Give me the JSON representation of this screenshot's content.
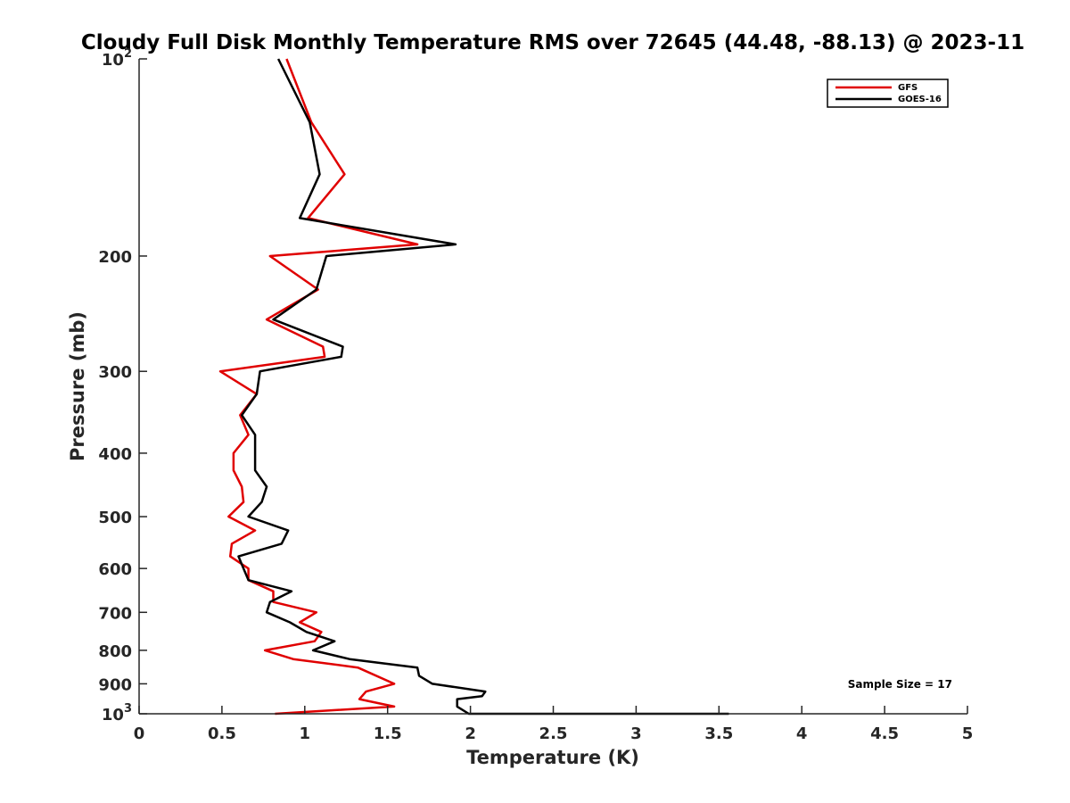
{
  "chart_data": {
    "type": "line",
    "title": "Cloudy Full Disk Monthly Temperature RMS over 72645 (44.48, -88.13) @ 2023-11",
    "xlabel": "Temperature (K)",
    "ylabel": "Pressure (mb)",
    "xlim": [
      0,
      5
    ],
    "ylim": [
      100,
      1000
    ],
    "y_scale": "log",
    "y_reversed": true,
    "grid": false,
    "legend_position": "top-right",
    "x_ticks": [
      "0",
      "0.5",
      "1",
      "1.5",
      "2",
      "2.5",
      "3",
      "3.5",
      "4",
      "4.5",
      "5"
    ],
    "y_ticks": [
      {
        "value": 100,
        "base": "10",
        "exp": "2"
      },
      {
        "value": 200,
        "label": "200"
      },
      {
        "value": 300,
        "label": "300"
      },
      {
        "value": 400,
        "label": "400"
      },
      {
        "value": 500,
        "label": "500"
      },
      {
        "value": 600,
        "label": "600"
      },
      {
        "value": 700,
        "label": "700"
      },
      {
        "value": 800,
        "label": "800"
      },
      {
        "value": 900,
        "label": "900"
      },
      {
        "value": 1000,
        "base": "10",
        "exp": "3"
      }
    ],
    "annotation": "Sample Size = 17",
    "series": [
      {
        "name": "GFS",
        "color": "#e00000",
        "points": [
          [
            0.89,
            100
          ],
          [
            1.04,
            125
          ],
          [
            1.24,
            150
          ],
          [
            1.02,
            175
          ],
          [
            1.68,
            192
          ],
          [
            0.79,
            200
          ],
          [
            1.08,
            225
          ],
          [
            0.77,
            250
          ],
          [
            1.11,
            275
          ],
          [
            1.12,
            285
          ],
          [
            0.49,
            300
          ],
          [
            0.71,
            325
          ],
          [
            0.61,
            350
          ],
          [
            0.66,
            375
          ],
          [
            0.57,
            400
          ],
          [
            0.57,
            425
          ],
          [
            0.62,
            450
          ],
          [
            0.63,
            475
          ],
          [
            0.54,
            500
          ],
          [
            0.7,
            525
          ],
          [
            0.56,
            550
          ],
          [
            0.55,
            575
          ],
          [
            0.66,
            600
          ],
          [
            0.66,
            625
          ],
          [
            0.81,
            650
          ],
          [
            0.81,
            675
          ],
          [
            1.07,
            700
          ],
          [
            0.97,
            725
          ],
          [
            1.1,
            750
          ],
          [
            1.06,
            775
          ],
          [
            0.76,
            800
          ],
          [
            0.93,
            825
          ],
          [
            1.32,
            850
          ],
          [
            1.54,
            900
          ],
          [
            1.37,
            925
          ],
          [
            1.33,
            950
          ],
          [
            1.54,
            975
          ],
          [
            0.82,
            1000
          ]
        ]
      },
      {
        "name": "GOES-16",
        "color": "#000000",
        "points": [
          [
            0.84,
            100
          ],
          [
            1.03,
            125
          ],
          [
            1.09,
            150
          ],
          [
            0.97,
            175
          ],
          [
            1.91,
            192
          ],
          [
            1.13,
            200
          ],
          [
            1.07,
            225
          ],
          [
            0.81,
            250
          ],
          [
            1.23,
            275
          ],
          [
            1.22,
            285
          ],
          [
            0.73,
            300
          ],
          [
            0.71,
            325
          ],
          [
            0.62,
            350
          ],
          [
            0.7,
            375
          ],
          [
            0.7,
            400
          ],
          [
            0.7,
            425
          ],
          [
            0.77,
            450
          ],
          [
            0.74,
            475
          ],
          [
            0.66,
            500
          ],
          [
            0.9,
            525
          ],
          [
            0.86,
            550
          ],
          [
            0.6,
            575
          ],
          [
            0.63,
            600
          ],
          [
            0.66,
            625
          ],
          [
            0.92,
            650
          ],
          [
            0.79,
            675
          ],
          [
            0.77,
            700
          ],
          [
            0.91,
            725
          ],
          [
            1.01,
            750
          ],
          [
            1.18,
            775
          ],
          [
            1.05,
            800
          ],
          [
            1.27,
            825
          ],
          [
            1.68,
            850
          ],
          [
            1.69,
            875
          ],
          [
            1.77,
            900
          ],
          [
            2.09,
            925
          ],
          [
            2.07,
            940
          ],
          [
            1.92,
            950
          ],
          [
            1.92,
            975
          ],
          [
            1.99,
            1000
          ],
          [
            3.56,
            1000
          ]
        ]
      }
    ]
  }
}
